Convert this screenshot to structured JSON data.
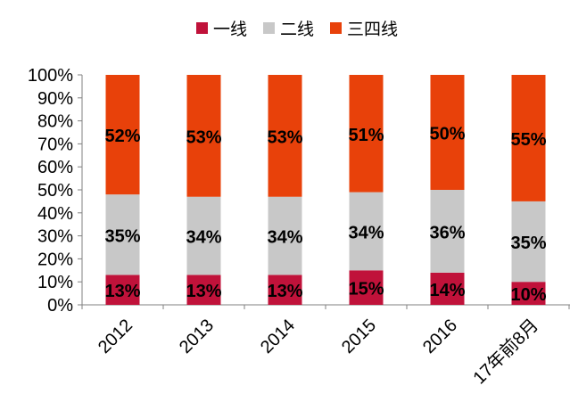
{
  "chart_data": {
    "type": "bar",
    "stacked": true,
    "percent": true,
    "categories": [
      "2012",
      "2013",
      "2014",
      "2015",
      "2016",
      "17年前8月"
    ],
    "series": [
      {
        "name": "一线",
        "color": "#c0123a",
        "values": [
          13,
          13,
          13,
          15,
          14,
          10
        ],
        "labels": [
          "13%",
          "13%",
          "13%",
          "15%",
          "14%",
          "10%"
        ]
      },
      {
        "name": "二线",
        "color": "#c8c8c8",
        "values": [
          35,
          34,
          34,
          34,
          36,
          35
        ],
        "labels": [
          "35%",
          "34%",
          "34%",
          "34%",
          "36%",
          "35%"
        ]
      },
      {
        "name": "三四线",
        "color": "#e8410a",
        "values": [
          52,
          53,
          53,
          51,
          50,
          55
        ],
        "labels": [
          "52%",
          "53%",
          "53%",
          "51%",
          "50%",
          "55%"
        ]
      }
    ],
    "yticks": [
      "0%",
      "10%",
      "20%",
      "30%",
      "40%",
      "50%",
      "60%",
      "70%",
      "80%",
      "90%",
      "100%"
    ],
    "ylim": [
      0,
      100
    ],
    "legend_position": "top",
    "grid": false
  }
}
